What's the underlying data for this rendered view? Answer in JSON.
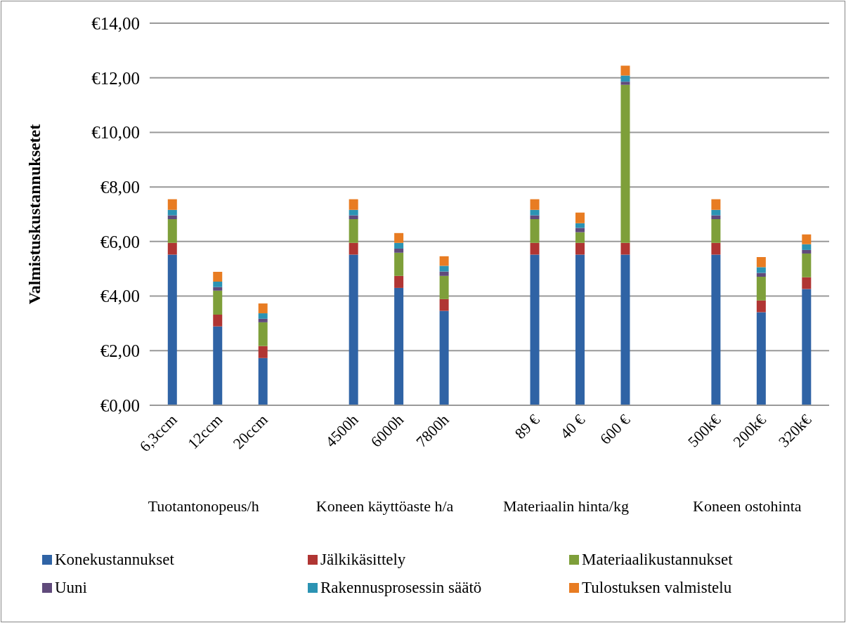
{
  "chart_data": {
    "type": "bar",
    "stacked": true,
    "ylabel": "Valmistuskustannuksetet",
    "categories": [
      "6,3ccm",
      "12ccm",
      "20ccm",
      null,
      "4500h",
      "6000h",
      "7800h",
      null,
      "89 €",
      "40 €",
      "600 €",
      null,
      "500k€",
      "200k€",
      "320k€"
    ],
    "series": [
      {
        "name": "Konekustannukset",
        "color": "#2f63a5",
        "values": [
          5.52,
          2.89,
          1.73,
          null,
          5.52,
          4.3,
          3.46,
          null,
          5.52,
          5.52,
          5.52,
          null,
          5.52,
          3.41,
          4.26
        ]
      },
      {
        "name": "Jälkikäsittely",
        "color": "#b03533",
        "values": [
          0.43,
          0.43,
          0.44,
          null,
          0.43,
          0.44,
          0.43,
          null,
          0.43,
          0.43,
          0.43,
          null,
          0.43,
          0.43,
          0.43
        ]
      },
      {
        "name": "Materiaalikustannukset",
        "color": "#7e9f3a",
        "values": [
          0.87,
          0.88,
          0.87,
          null,
          0.87,
          0.85,
          0.85,
          null,
          0.87,
          0.39,
          5.79,
          null,
          0.87,
          0.87,
          0.87
        ]
      },
      {
        "name": "Uuni",
        "color": "#604a7b",
        "values": [
          0.14,
          0.13,
          0.13,
          null,
          0.14,
          0.15,
          0.16,
          null,
          0.14,
          0.16,
          0.12,
          null,
          0.14,
          0.14,
          0.13
        ]
      },
      {
        "name": "Rakennusprosessin säätö",
        "color": "#2b93b3",
        "values": [
          0.2,
          0.2,
          0.2,
          null,
          0.2,
          0.21,
          0.21,
          null,
          0.2,
          0.17,
          0.22,
          null,
          0.2,
          0.21,
          0.21
        ]
      },
      {
        "name": "Tulostuksen valmistelu",
        "color": "#e87c22",
        "values": [
          0.39,
          0.36,
          0.36,
          null,
          0.39,
          0.36,
          0.35,
          null,
          0.39,
          0.39,
          0.36,
          null,
          0.39,
          0.37,
          0.36
        ]
      }
    ],
    "ylim": [
      0,
      14
    ],
    "yticks": [
      {
        "value": 0,
        "label": "€0,00"
      },
      {
        "value": 2,
        "label": "€2,00"
      },
      {
        "value": 4,
        "label": "€4,00"
      },
      {
        "value": 6,
        "label": "€6,00"
      },
      {
        "value": 8,
        "label": "€8,00"
      },
      {
        "value": 10,
        "label": "€10,00"
      },
      {
        "value": 12,
        "label": "€12,00"
      },
      {
        "value": 14,
        "label": "€14,00"
      }
    ],
    "annotations": [
      "Tuotantonopeus/h",
      "Koneen käyttöaste h/a",
      "Materiaalin hinta/kg",
      "Koneen ostohinta"
    ],
    "grid": "y",
    "legend": "bottom"
  }
}
